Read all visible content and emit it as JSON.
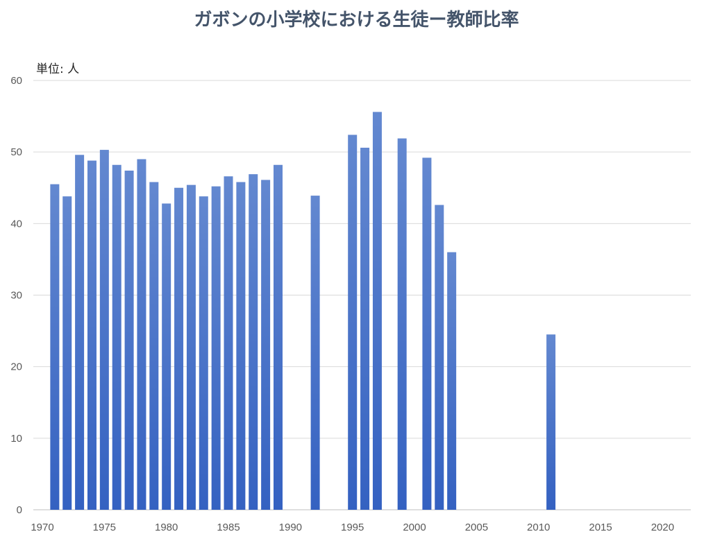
{
  "chart_data": {
    "type": "bar",
    "title": "ガボンの小学校における生徒ー教師比率",
    "unit_label": "単位: 人",
    "xlabel": "",
    "ylabel": "",
    "ylim": [
      0,
      60
    ],
    "y_ticks": [
      0,
      10,
      20,
      30,
      40,
      50,
      60
    ],
    "xlim": [
      1970,
      2023
    ],
    "x_ticks": [
      1970,
      1975,
      1980,
      1985,
      1990,
      1995,
      2000,
      2005,
      2010,
      2015,
      2020
    ],
    "grid": true,
    "bar_color_top": "#6388d0",
    "bar_color_bottom": "#3461c1",
    "x": [
      1971,
      1972,
      1973,
      1974,
      1975,
      1976,
      1977,
      1978,
      1979,
      1980,
      1981,
      1982,
      1983,
      1984,
      1985,
      1986,
      1987,
      1988,
      1989,
      1992,
      1995,
      1996,
      1997,
      1999,
      2001,
      2002,
      2003,
      2011
    ],
    "values": [
      45.5,
      43.8,
      49.6,
      48.8,
      50.3,
      48.2,
      47.4,
      49.0,
      45.8,
      42.8,
      45.0,
      45.4,
      43.8,
      45.2,
      46.6,
      45.8,
      46.9,
      46.1,
      48.2,
      43.9,
      52.4,
      50.6,
      55.6,
      51.9,
      49.2,
      42.6,
      36.0,
      24.5
    ]
  }
}
